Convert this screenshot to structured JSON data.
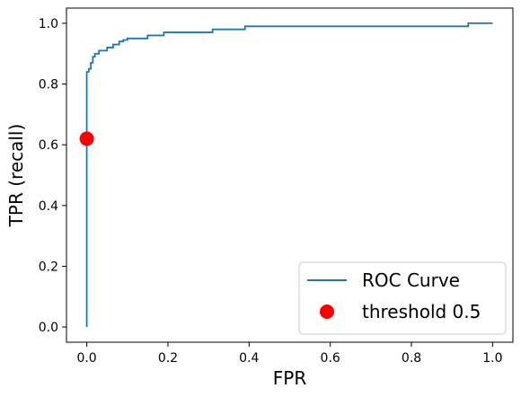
{
  "chart_data": {
    "type": "line",
    "title": "",
    "xlabel": "FPR",
    "ylabel": "TPR (recall)",
    "xlim": [
      -0.05,
      1.05
    ],
    "ylim": [
      -0.05,
      1.05
    ],
    "grid": false,
    "legend_placement": "lower-right",
    "x_ticks": [
      "0.0",
      "0.2",
      "0.4",
      "0.6",
      "0.8",
      "1.0"
    ],
    "y_ticks": [
      "0.0",
      "0.2",
      "0.4",
      "0.6",
      "0.8",
      "1.0"
    ],
    "series": [
      {
        "name": "ROC Curve",
        "type": "line",
        "color": "#1f77b4",
        "x": [
          0.0,
          0.0,
          0.0,
          0.0,
          0.0,
          0.0,
          0.0,
          0.005,
          0.005,
          0.01,
          0.01,
          0.015,
          0.015,
          0.02,
          0.02,
          0.03,
          0.03,
          0.05,
          0.05,
          0.065,
          0.065,
          0.08,
          0.08,
          0.09,
          0.09,
          0.1,
          0.1,
          0.15,
          0.15,
          0.19,
          0.19,
          0.31,
          0.31,
          0.39,
          0.39,
          0.94,
          0.94,
          1.0
        ],
        "y": [
          0.0,
          0.62,
          0.8,
          0.83,
          0.83,
          0.84,
          0.84,
          0.84,
          0.85,
          0.85,
          0.87,
          0.87,
          0.89,
          0.89,
          0.9,
          0.9,
          0.91,
          0.91,
          0.92,
          0.92,
          0.93,
          0.93,
          0.94,
          0.94,
          0.945,
          0.945,
          0.95,
          0.95,
          0.96,
          0.96,
          0.97,
          0.97,
          0.98,
          0.98,
          0.99,
          0.99,
          1.0,
          1.0
        ]
      },
      {
        "name": "threshold 0.5",
        "type": "marker",
        "color": "#ff0000",
        "x": [
          0.0
        ],
        "y": [
          0.62
        ]
      }
    ]
  }
}
